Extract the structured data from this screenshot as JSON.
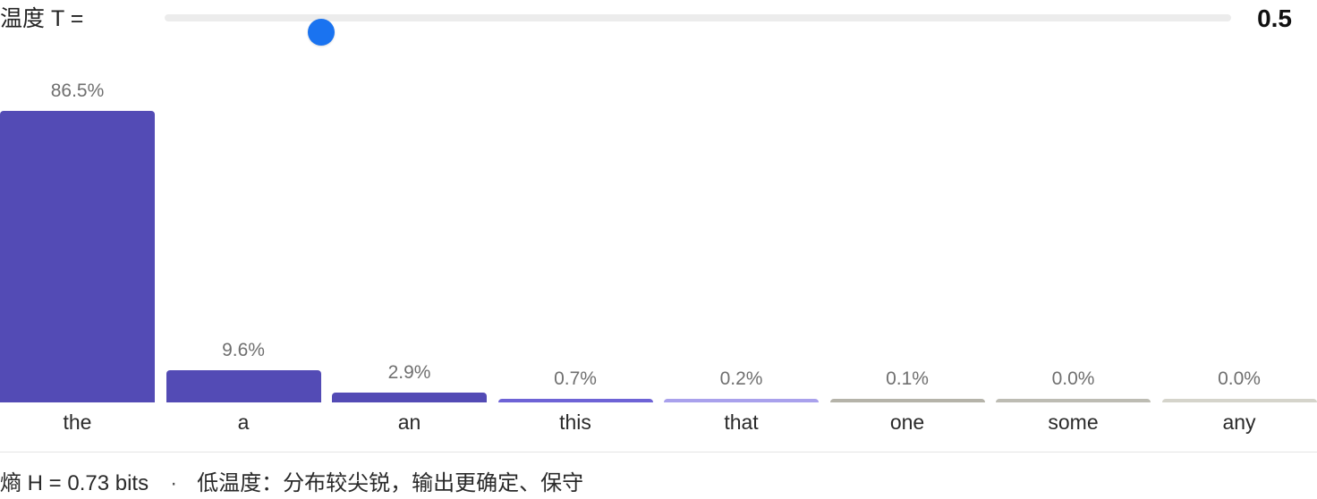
{
  "slider": {
    "label": "温度 T =",
    "value": 0.5,
    "value_label": "0.5",
    "fraction": 0.147,
    "thumb_color": "#1a73f0",
    "track_color": "#ececec"
  },
  "chart_data": {
    "type": "bar",
    "categories": [
      "the",
      "a",
      "an",
      "this",
      "that",
      "one",
      "some",
      "any"
    ],
    "values": [
      86.5,
      9.6,
      2.9,
      0.7,
      0.2,
      0.1,
      0.0,
      0.0
    ],
    "value_labels": [
      "86.5%",
      "9.6%",
      "2.9%",
      "0.7%",
      "0.2%",
      "0.1%",
      "0.0%",
      "0.0%"
    ],
    "colors": [
      "#534bb5",
      "#534bb5",
      "#534bb5",
      "#6e63d6",
      "#a9a1ec",
      "#b5b3a9",
      "#bdbcb3",
      "#d5d4cb"
    ],
    "ylim": [
      0,
      86.5
    ],
    "grid": false
  },
  "footer": {
    "entropy": "熵 H = 0.73 bits",
    "separator": "·",
    "note": "低温度：分布较尖锐，输出更确定、保守"
  }
}
